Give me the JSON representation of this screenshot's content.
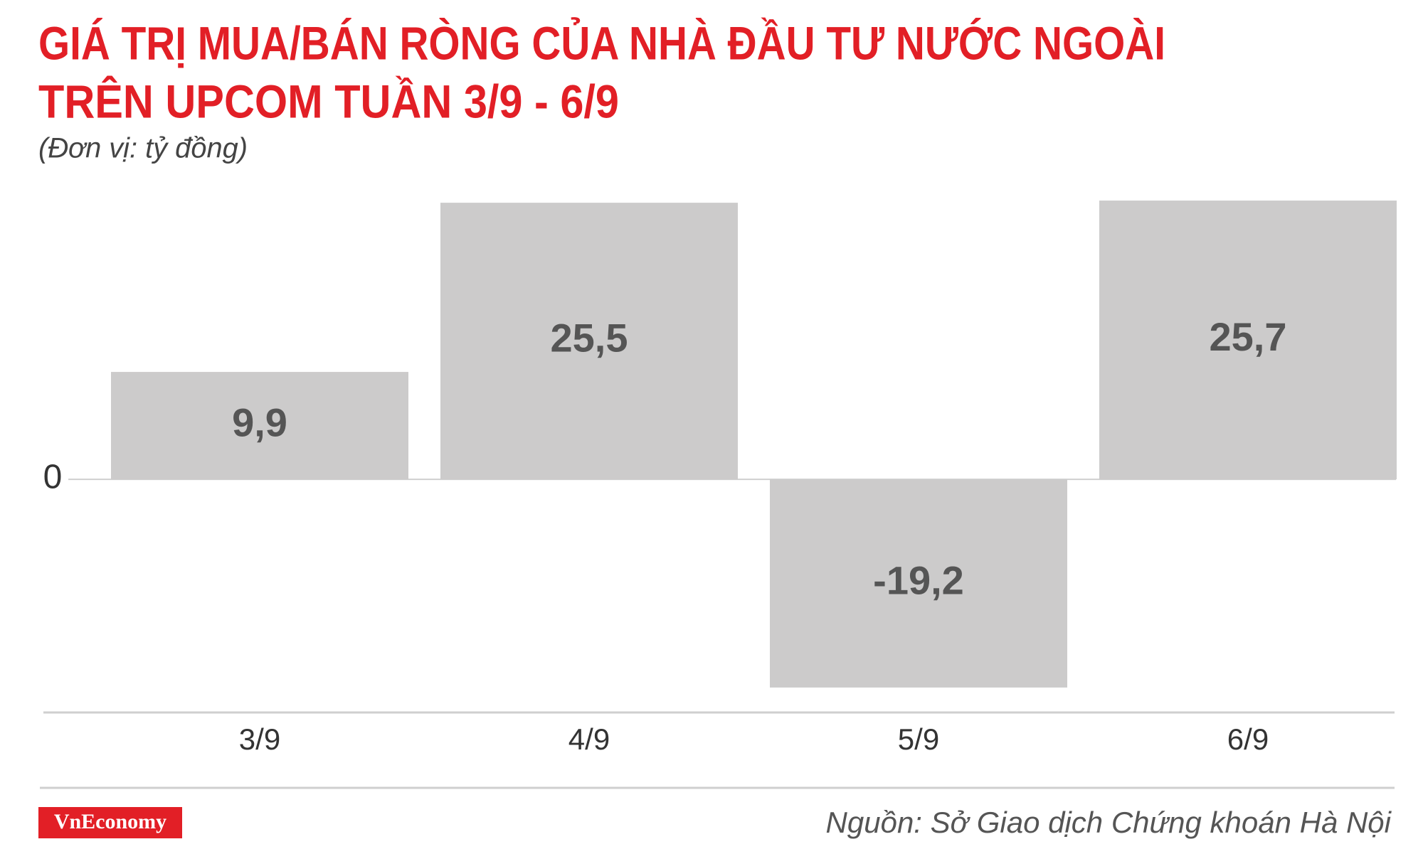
{
  "chart_data": {
    "type": "bar",
    "title": [
      "GIÁ TRỊ MUA/BÁN RÒNG CỦA NHÀ ĐẦU TƯ NƯỚC NGOÀI",
      "TRÊN UPCOM TUẦN 3/9 - 6/9"
    ],
    "subtitle": "(Đơn vị: tỷ đồng)",
    "categories": [
      "3/9",
      "4/9",
      "5/9",
      "6/9"
    ],
    "values": [
      9.9,
      25.5,
      -19.2,
      25.7
    ],
    "value_labels": [
      "9,9",
      "25,5",
      "-19,2",
      "25,7"
    ],
    "color": "#cccbcb",
    "ylim": [
      -21.5,
      28
    ],
    "yticks": [
      0
    ],
    "source": "Nguồn: Sở Giao dịch Chứng khoán Hà Nội",
    "logo": "VnEconomy"
  }
}
